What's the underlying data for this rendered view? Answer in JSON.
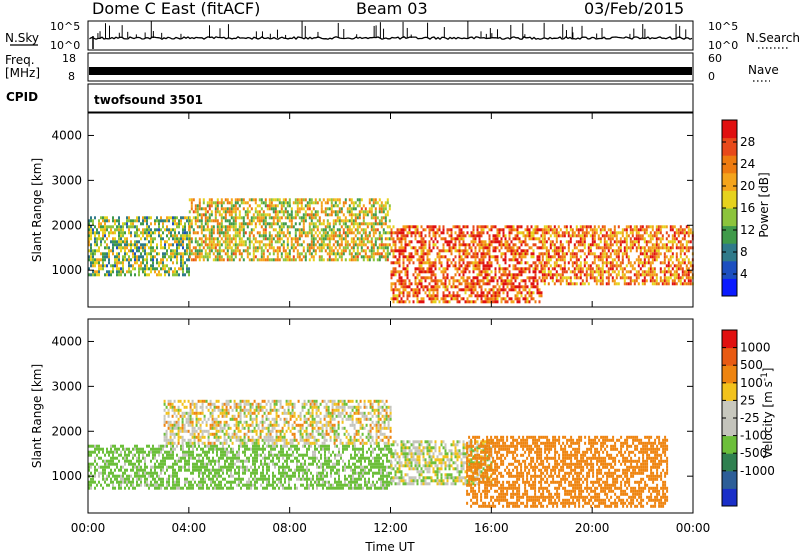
{
  "header": {
    "radar": "Dome C East (fitACF)",
    "beam": "Beam 03",
    "date": "03/Feb/2015"
  },
  "strip_labels": {
    "nsky": "N.Sky",
    "freq_top": "Freq.",
    "freq_unit": "[MHz]",
    "cpid": "CPID",
    "nsearch": "N.Search",
    "nave": "Nave",
    "nsky_ticks": [
      "10^5",
      "10^0"
    ],
    "nsearch_ticks": [
      "10^5",
      "10^0"
    ],
    "freq_ticks": [
      "18",
      "8"
    ],
    "nave_ticks": [
      "60",
      "0"
    ],
    "cpid_value": "twofsound 3501"
  },
  "x_axis": {
    "label": "Time UT",
    "ticks": [
      "00:00",
      "04:00",
      "08:00",
      "12:00",
      "16:00",
      "20:00",
      "00:00"
    ]
  },
  "colors": {
    "power_scale": [
      "#0b1bff",
      "#1c4fc0",
      "#2f7a8a",
      "#3f9a4a",
      "#8cc43c",
      "#e6d21e",
      "#f4a41c",
      "#ee7b10",
      "#e8491a",
      "#e01010"
    ],
    "velocity_scale": [
      "#1a2fc8",
      "#2d5e98",
      "#2f8050",
      "#6cbf3a",
      "#c4c4bc",
      "#c8c8be",
      "#f2c21c",
      "#ee8410",
      "#e85a12",
      "#e01010"
    ]
  },
  "chart_data": [
    {
      "type": "heatmap",
      "title": "",
      "xlabel": "",
      "ylabel": "Slant Range [km]",
      "xlim": [
        "00:00",
        "24:00"
      ],
      "ylim": [
        180,
        4500
      ],
      "yticks": [
        "1000",
        "2000",
        "3000",
        "4000"
      ],
      "colorbar_label": "Power [dB]",
      "colorbar_ticks": [
        "28",
        "24",
        "20",
        "16",
        "12",
        "8",
        "4"
      ],
      "colorbar_range": [
        0,
        32
      ],
      "summary_regions": [
        {
          "hours": [
            0,
            4
          ],
          "range_km": [
            900,
            2200
          ],
          "value_db": 14
        },
        {
          "hours": [
            4,
            12
          ],
          "range_km": [
            1200,
            2600
          ],
          "value_db": 18
        },
        {
          "hours": [
            12,
            18
          ],
          "range_km": [
            300,
            2000
          ],
          "value_db": 26
        },
        {
          "hours": [
            18,
            24
          ],
          "range_km": [
            700,
            2000
          ],
          "value_db": 24
        }
      ]
    },
    {
      "type": "heatmap",
      "title": "",
      "xlabel": "Time UT",
      "ylabel": "Slant Range [km]",
      "xlim": [
        "00:00",
        "24:00"
      ],
      "ylim": [
        180,
        4500
      ],
      "yticks": [
        "1000",
        "2000",
        "3000",
        "4000"
      ],
      "colorbar_label": "Velocity [m s^-1]",
      "colorbar_ticks": [
        "1000",
        "500",
        "100",
        "25",
        "-25",
        "-100",
        "-500",
        "-1000"
      ],
      "colorbar_range": [
        -1200,
        1200
      ],
      "summary_regions": [
        {
          "hours": [
            0,
            12
          ],
          "range_km": [
            700,
            1700
          ],
          "value_ms": -200
        },
        {
          "hours": [
            3,
            12
          ],
          "range_km": [
            1700,
            2700
          ],
          "value_ms": 0
        },
        {
          "hours": [
            12,
            16
          ],
          "range_km": [
            800,
            1800
          ],
          "value_ms": -50
        },
        {
          "hours": [
            15,
            23
          ],
          "range_km": [
            300,
            1900
          ],
          "value_ms": 250
        }
      ]
    }
  ]
}
